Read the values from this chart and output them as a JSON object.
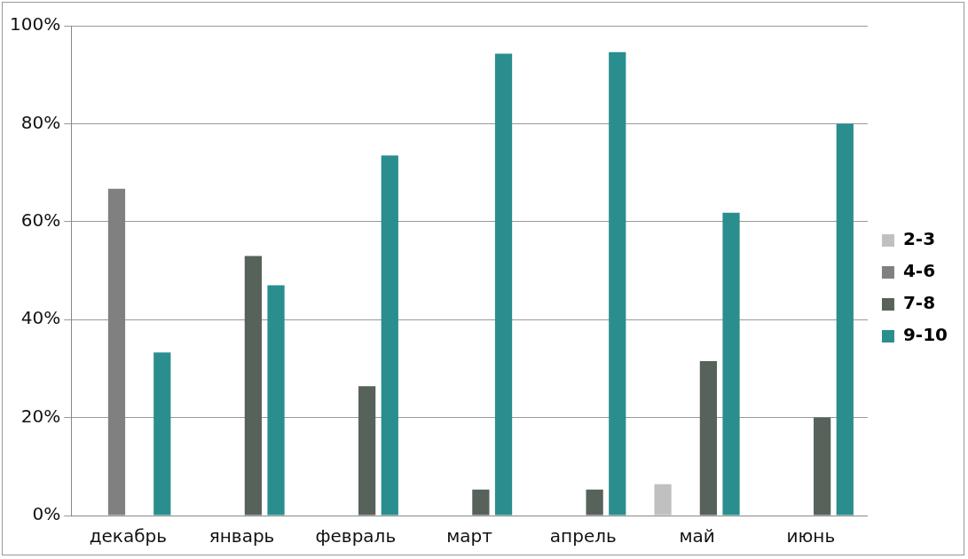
{
  "chart_data": {
    "type": "bar",
    "categories": [
      "декабрь",
      "январь",
      "февраль",
      "март",
      "апрель",
      "май",
      "июнь"
    ],
    "series": [
      {
        "name": "2-3",
        "color": "#c0c0c0",
        "values": [
          0,
          0,
          0,
          0,
          0,
          6.4,
          0
        ]
      },
      {
        "name": "4-6",
        "color": "#808080",
        "values": [
          66.7,
          0,
          0,
          0,
          0,
          0,
          0
        ]
      },
      {
        "name": "7-8",
        "color": "#56625a",
        "values": [
          0,
          53,
          26.4,
          5.3,
          5.3,
          31.5,
          20
        ]
      },
      {
        "name": "9-10",
        "color": "#2a8e8e",
        "values": [
          33.3,
          47,
          73.5,
          94.3,
          94.6,
          61.8,
          80
        ]
      }
    ],
    "ylim": [
      0,
      100
    ],
    "yticks": [
      {
        "value": 0,
        "label": "0%"
      },
      {
        "value": 20,
        "label": "20%"
      },
      {
        "value": 40,
        "label": "40%"
      },
      {
        "value": 60,
        "label": "60%"
      },
      {
        "value": 80,
        "label": "80%"
      },
      {
        "value": 100,
        "label": "100%"
      }
    ],
    "grid": "y",
    "legend": "right"
  }
}
